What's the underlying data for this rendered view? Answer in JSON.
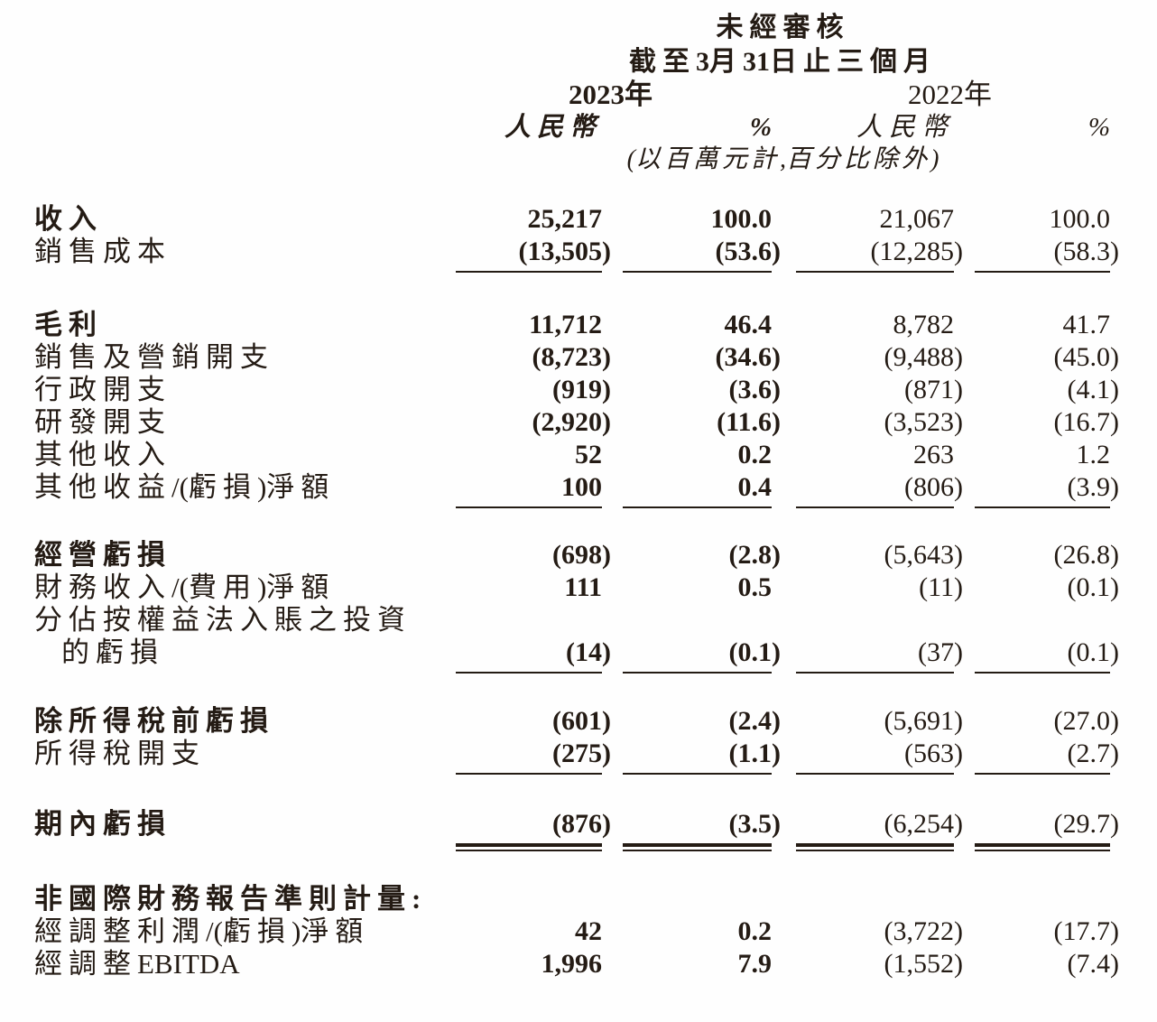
{
  "header": {
    "unaudited": "未經審核",
    "period": "截至3月31日止三個月",
    "year_2023": "2023年",
    "year_2022": "2022年",
    "col_rmb_2023": "人民幣",
    "col_pct_2023": "%",
    "col_rmb_2022": "人民幣",
    "col_pct_2022": "%",
    "unit_note": "(以百萬元計,百分比除外)"
  },
  "rows": [
    {
      "label": "收入",
      "values": [
        "25,217",
        "100.0",
        "21,067",
        "100.0"
      ]
    },
    {
      "label": "銷售成本",
      "values": [
        "(13,505)",
        "(53.6)",
        "(12,285)",
        "(58.3)"
      ]
    },
    {
      "label": "毛利",
      "values": [
        "11,712",
        "46.4",
        "8,782",
        "41.7"
      ]
    },
    {
      "label": "銷售及營銷開支",
      "values": [
        "(8,723)",
        "(34.6)",
        "(9,488)",
        "(45.0)"
      ]
    },
    {
      "label": "行政開支",
      "values": [
        "(919)",
        "(3.6)",
        "(871)",
        "(4.1)"
      ]
    },
    {
      "label": "研發開支",
      "values": [
        "(2,920)",
        "(11.6)",
        "(3,523)",
        "(16.7)"
      ]
    },
    {
      "label": "其他收入",
      "values": [
        "52",
        "0.2",
        "263",
        "1.2"
      ]
    },
    {
      "label": "其他收益/(虧損)淨額",
      "values": [
        "100",
        "0.4",
        "(806)",
        "(3.9)"
      ]
    },
    {
      "label": "經營虧損",
      "values": [
        "(698)",
        "(2.8)",
        "(5,643)",
        "(26.8)"
      ]
    },
    {
      "label": "財務收入/(費用)淨額",
      "values": [
        "111",
        "0.5",
        "(11)",
        "(0.1)"
      ]
    },
    {
      "label": "分佔按權益法入賬之投資",
      "label2": "的虧損",
      "values": [
        "(14)",
        "(0.1)",
        "(37)",
        "(0.1)"
      ]
    },
    {
      "label": "除所得稅前虧損",
      "values": [
        "(601)",
        "(2.4)",
        "(5,691)",
        "(27.0)"
      ]
    },
    {
      "label": "所得稅開支",
      "values": [
        "(275)",
        "(1.1)",
        "(563)",
        "(2.7)"
      ]
    },
    {
      "label": "期內虧損",
      "values": [
        "(876)",
        "(3.5)",
        "(6,254)",
        "(29.7)"
      ]
    },
    {
      "label": "非國際財務報告準則計量:",
      "values": [
        "",
        "",
        "",
        ""
      ]
    },
    {
      "label": "經調整利潤/(虧損)淨額",
      "values": [
        "42",
        "0.2",
        "(3,722)",
        "(17.7)"
      ]
    },
    {
      "label": "經調整EBITDA",
      "values": [
        "1,996",
        "7.9",
        "(1,552)",
        "(7.4)"
      ]
    }
  ]
}
